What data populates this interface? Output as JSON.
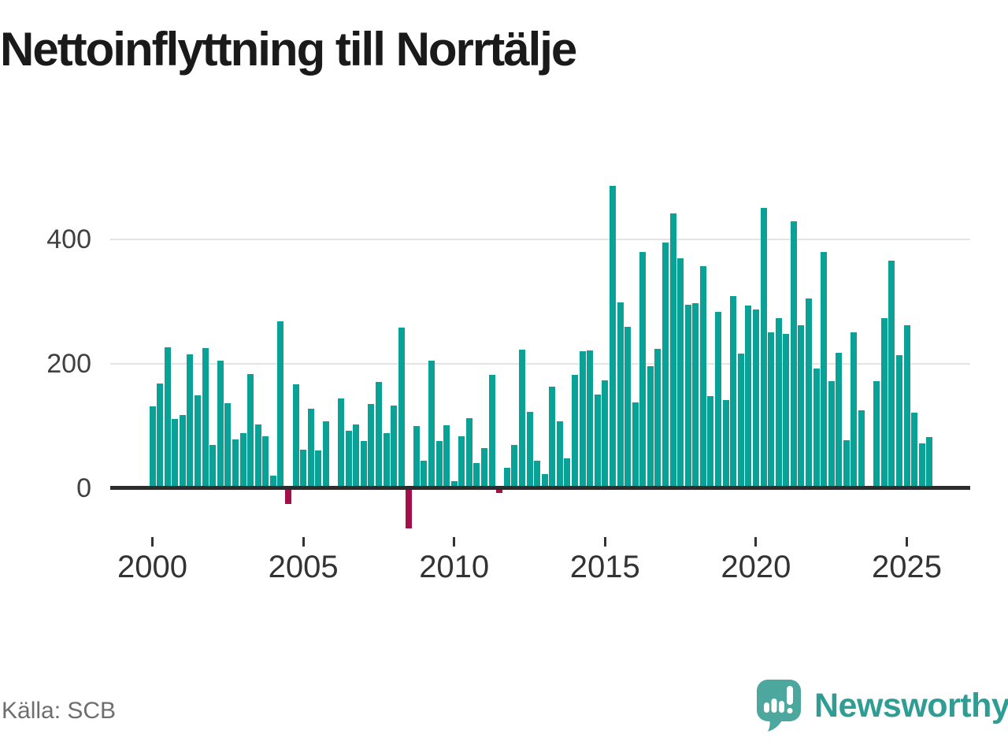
{
  "title": "Nettoinflyttning till Norrtälje",
  "source": "Källa: SCB",
  "branding": {
    "name": "Newsworthy"
  },
  "colors": {
    "positive_bar": "#0aa296",
    "negative_bar": "#a31049",
    "axis": "#2d2d2d",
    "gridline": "#e4e4e4",
    "title_text": "#1a1a1a",
    "tick_text": "#404040",
    "source_text": "#6e6e6e",
    "brand_teal": "#2f9d93",
    "brand_bubble": "#4ca79f"
  },
  "chart_data": {
    "type": "bar",
    "title": "Nettoinflyttning till Norrtälje",
    "xlabel": "",
    "ylabel": "",
    "frequency": "quarterly",
    "x_start": "2000-Q1",
    "x_end": "2025-Q4",
    "x": [
      "2000Q1",
      "2000Q2",
      "2000Q3",
      "2000Q4",
      "2001Q1",
      "2001Q2",
      "2001Q3",
      "2001Q4",
      "2002Q1",
      "2002Q2",
      "2002Q3",
      "2002Q4",
      "2003Q1",
      "2003Q2",
      "2003Q3",
      "2003Q4",
      "2004Q1",
      "2004Q2",
      "2004Q3",
      "2004Q4",
      "2005Q1",
      "2005Q2",
      "2005Q3",
      "2005Q4",
      "2006Q1",
      "2006Q2",
      "2006Q3",
      "2006Q4",
      "2007Q1",
      "2007Q2",
      "2007Q3",
      "2007Q4",
      "2008Q1",
      "2008Q2",
      "2008Q3",
      "2008Q4",
      "2009Q1",
      "2009Q2",
      "2009Q3",
      "2009Q4",
      "2010Q1",
      "2010Q2",
      "2010Q3",
      "2010Q4",
      "2011Q1",
      "2011Q2",
      "2011Q3",
      "2011Q4",
      "2012Q1",
      "2012Q2",
      "2012Q3",
      "2012Q4",
      "2013Q1",
      "2013Q2",
      "2013Q3",
      "2013Q4",
      "2014Q1",
      "2014Q2",
      "2014Q3",
      "2014Q4",
      "2015Q1",
      "2015Q2",
      "2015Q3",
      "2015Q4",
      "2016Q1",
      "2016Q2",
      "2016Q3",
      "2016Q4",
      "2017Q1",
      "2017Q2",
      "2017Q3",
      "2017Q4",
      "2018Q1",
      "2018Q2",
      "2018Q3",
      "2018Q4",
      "2019Q1",
      "2019Q2",
      "2019Q3",
      "2019Q4",
      "2020Q1",
      "2020Q2",
      "2020Q3",
      "2020Q4",
      "2021Q1",
      "2021Q2",
      "2021Q3",
      "2021Q4",
      "2022Q1",
      "2022Q2",
      "2022Q3",
      "2022Q4",
      "2023Q1",
      "2023Q2",
      "2023Q3",
      "2023Q4",
      "2024Q1",
      "2024Q2",
      "2024Q3",
      "2024Q4",
      "2025Q1",
      "2025Q2",
      "2025Q3",
      "2025Q4"
    ],
    "values": [
      132,
      168,
      227,
      112,
      118,
      215,
      149,
      225,
      70,
      205,
      137,
      78,
      89,
      184,
      103,
      84,
      20,
      268,
      -25,
      167,
      62,
      128,
      61,
      107,
      0,
      144,
      92,
      103,
      76,
      136,
      171,
      89,
      133,
      258,
      -65,
      100,
      44,
      205,
      76,
      101,
      11,
      83,
      113,
      41,
      64,
      182,
      -8,
      33,
      69,
      223,
      123,
      44,
      23,
      163,
      108,
      48,
      182,
      220,
      222,
      150,
      173,
      486,
      299,
      260,
      138,
      380,
      196,
      224,
      395,
      442,
      369,
      295,
      297,
      357,
      148,
      283,
      142,
      309,
      216,
      294,
      287,
      450,
      250,
      274,
      248,
      429,
      262,
      305,
      193,
      380,
      172,
      218,
      77,
      251,
      125,
      0,
      172,
      273,
      366,
      214,
      262,
      122,
      72,
      82
    ],
    "yticks": [
      0,
      200,
      400
    ],
    "xticks": [
      "2000",
      "2005",
      "2010",
      "2015",
      "2020",
      "2025"
    ],
    "ylim": [
      -80,
      500
    ],
    "grid": "horizontal",
    "legend": "none"
  }
}
